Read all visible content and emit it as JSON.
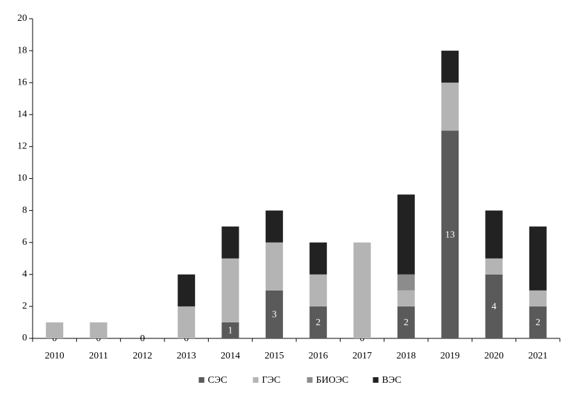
{
  "chart_data": {
    "type": "stacked-bar",
    "categories": [
      "2010",
      "2011",
      "2012",
      "2013",
      "2014",
      "2015",
      "2016",
      "2017",
      "2018",
      "2019",
      "2020",
      "2021"
    ],
    "series": [
      {
        "name": "СЭС",
        "color": "#5a5a5a",
        "values": [
          0,
          0,
          0,
          0,
          1,
          3,
          2,
          0,
          2,
          13,
          4,
          2
        ],
        "data_labels": true
      },
      {
        "name": "ГЭС",
        "color": "#b4b4b4",
        "values": [
          1,
          1,
          0,
          2,
          4,
          3,
          2,
          6,
          1,
          3,
          1,
          1
        ]
      },
      {
        "name": "БИОЭС",
        "color": "#8c8c8c",
        "values": [
          0,
          0,
          0,
          0,
          0,
          0,
          0,
          0,
          1,
          0,
          0,
          0
        ]
      },
      {
        "name": "ВЭС",
        "color": "#222222",
        "values": [
          0,
          0,
          0,
          2,
          2,
          2,
          2,
          0,
          5,
          2,
          3,
          4
        ]
      }
    ],
    "ylim": [
      0,
      20
    ],
    "yticks": [
      0,
      2,
      4,
      6,
      8,
      10,
      12,
      14,
      16,
      18,
      20
    ],
    "grid": false,
    "legend": "bottom"
  }
}
